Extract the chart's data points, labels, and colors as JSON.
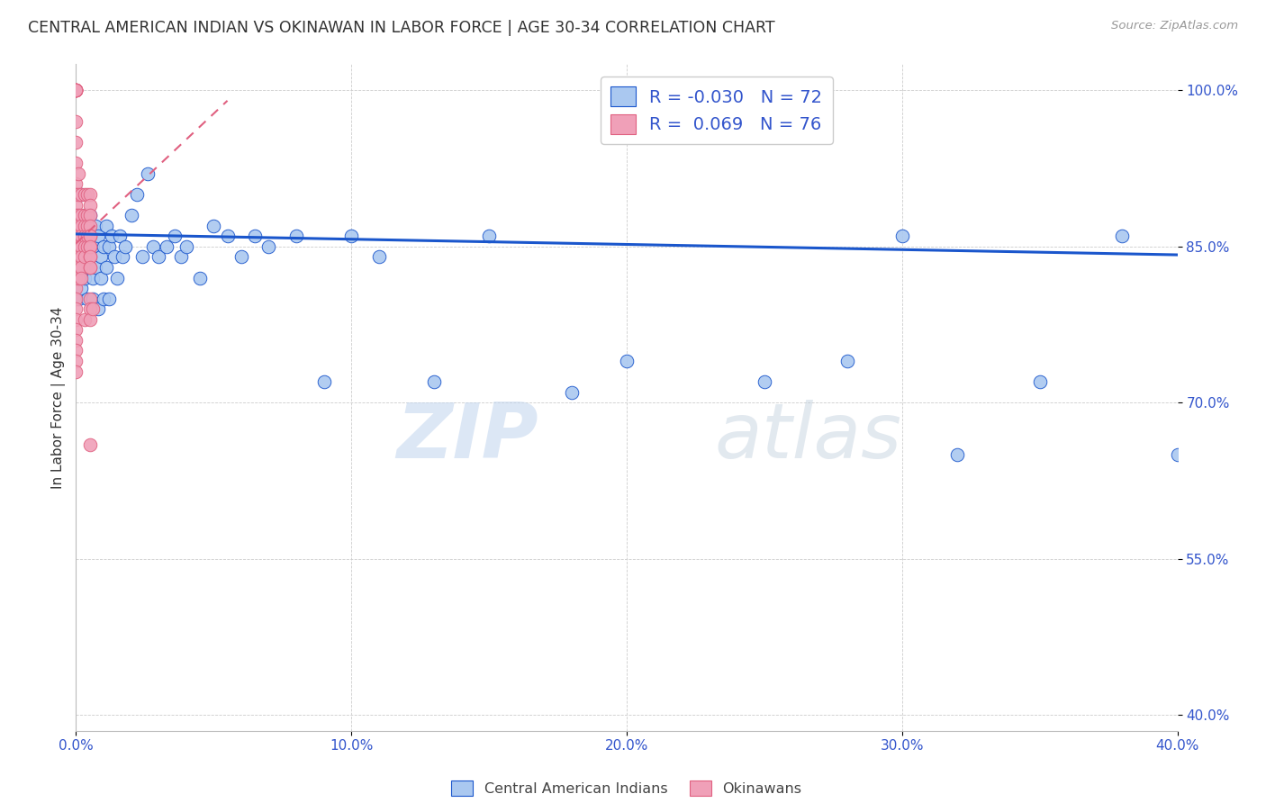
{
  "title": "CENTRAL AMERICAN INDIAN VS OKINAWAN IN LABOR FORCE | AGE 30-34 CORRELATION CHART",
  "source": "Source: ZipAtlas.com",
  "ylabel": "In Labor Force | Age 30-34",
  "xlim": [
    0.0,
    0.4
  ],
  "ylim": [
    0.385,
    1.025
  ],
  "xticks": [
    0.0,
    0.1,
    0.2,
    0.3,
    0.4
  ],
  "yticks": [
    0.4,
    0.55,
    0.7,
    0.85,
    1.0
  ],
  "ytick_labels": [
    "40.0%",
    "55.0%",
    "70.0%",
    "85.0%",
    "100.0%"
  ],
  "xtick_labels": [
    "0.0%",
    "10.0%",
    "20.0%",
    "30.0%",
    "40.0%"
  ],
  "blue_R": "-0.030",
  "blue_N": "72",
  "pink_R": "0.069",
  "pink_N": "76",
  "blue_color": "#aac8f0",
  "pink_color": "#f0a0b8",
  "blue_line_color": "#1a56cc",
  "pink_line_color": "#e06080",
  "watermark_zip": "ZIP",
  "watermark_atlas": "atlas",
  "legend_label_blue": "Central American Indians",
  "legend_label_pink": "Okinawans",
  "blue_trend_x0": 0.0,
  "blue_trend_y0": 0.862,
  "blue_trend_x1": 0.4,
  "blue_trend_y1": 0.842,
  "pink_trend_x0": 0.0,
  "pink_trend_y0": 0.853,
  "pink_trend_x1": 0.055,
  "pink_trend_y1": 0.99,
  "blue_scatter_x": [
    0.001,
    0.001,
    0.001,
    0.001,
    0.001,
    0.002,
    0.002,
    0.002,
    0.002,
    0.002,
    0.003,
    0.003,
    0.003,
    0.003,
    0.004,
    0.004,
    0.004,
    0.005,
    0.005,
    0.005,
    0.006,
    0.006,
    0.006,
    0.007,
    0.007,
    0.008,
    0.008,
    0.009,
    0.009,
    0.01,
    0.01,
    0.011,
    0.011,
    0.012,
    0.012,
    0.013,
    0.014,
    0.015,
    0.016,
    0.017,
    0.018,
    0.02,
    0.022,
    0.024,
    0.026,
    0.028,
    0.03,
    0.033,
    0.036,
    0.038,
    0.04,
    0.045,
    0.05,
    0.055,
    0.06,
    0.065,
    0.07,
    0.08,
    0.09,
    0.1,
    0.11,
    0.13,
    0.15,
    0.18,
    0.2,
    0.25,
    0.28,
    0.3,
    0.32,
    0.35,
    0.38,
    0.4
  ],
  "blue_scatter_y": [
    0.86,
    0.84,
    0.82,
    0.88,
    0.8,
    0.85,
    0.83,
    0.87,
    0.81,
    0.9,
    0.86,
    0.84,
    0.82,
    0.88,
    0.85,
    0.83,
    0.8,
    0.86,
    0.84,
    0.88,
    0.85,
    0.82,
    0.8,
    0.87,
    0.83,
    0.86,
    0.79,
    0.84,
    0.82,
    0.85,
    0.8,
    0.87,
    0.83,
    0.85,
    0.8,
    0.86,
    0.84,
    0.82,
    0.86,
    0.84,
    0.85,
    0.88,
    0.9,
    0.84,
    0.92,
    0.85,
    0.84,
    0.85,
    0.86,
    0.84,
    0.85,
    0.82,
    0.87,
    0.86,
    0.84,
    0.86,
    0.85,
    0.86,
    0.72,
    0.86,
    0.84,
    0.72,
    0.86,
    0.71,
    0.74,
    0.72,
    0.74,
    0.86,
    0.65,
    0.72,
    0.86,
    0.65
  ],
  "pink_scatter_x": [
    0.0,
    0.0,
    0.0,
    0.0,
    0.0,
    0.0,
    0.0,
    0.0,
    0.0,
    0.0,
    0.0,
    0.0,
    0.0,
    0.0,
    0.0,
    0.0,
    0.0,
    0.0,
    0.0,
    0.0,
    0.0,
    0.0,
    0.0,
    0.0,
    0.0,
    0.0,
    0.0,
    0.0,
    0.0,
    0.0,
    0.001,
    0.001,
    0.001,
    0.001,
    0.001,
    0.001,
    0.001,
    0.001,
    0.001,
    0.002,
    0.002,
    0.002,
    0.002,
    0.002,
    0.002,
    0.002,
    0.002,
    0.003,
    0.003,
    0.003,
    0.003,
    0.003,
    0.003,
    0.003,
    0.004,
    0.004,
    0.004,
    0.004,
    0.004,
    0.005,
    0.005,
    0.005,
    0.005,
    0.005,
    0.005,
    0.005,
    0.005,
    0.005,
    0.005,
    0.005,
    0.005,
    0.005,
    0.005,
    0.005,
    0.005,
    0.006
  ],
  "pink_scatter_y": [
    1.0,
    1.0,
    1.0,
    1.0,
    1.0,
    1.0,
    1.0,
    1.0,
    0.97,
    0.95,
    0.93,
    0.91,
    0.9,
    0.89,
    0.88,
    0.87,
    0.86,
    0.85,
    0.84,
    0.83,
    0.82,
    0.81,
    0.8,
    0.79,
    0.78,
    0.77,
    0.76,
    0.75,
    0.74,
    0.73,
    0.92,
    0.9,
    0.88,
    0.87,
    0.86,
    0.85,
    0.84,
    0.83,
    0.82,
    0.9,
    0.88,
    0.87,
    0.86,
    0.85,
    0.84,
    0.83,
    0.82,
    0.9,
    0.88,
    0.87,
    0.86,
    0.85,
    0.84,
    0.78,
    0.9,
    0.88,
    0.87,
    0.86,
    0.85,
    0.9,
    0.89,
    0.88,
    0.87,
    0.86,
    0.85,
    0.84,
    0.83,
    0.8,
    0.79,
    0.78,
    0.86,
    0.85,
    0.84,
    0.83,
    0.66,
    0.79
  ]
}
